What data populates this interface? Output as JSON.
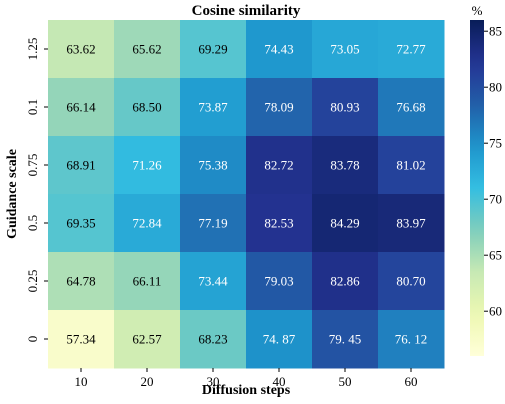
{
  "chart_data": {
    "type": "heatmap",
    "title": "Cosine similarity",
    "xlabel": "Diffusion steps",
    "ylabel": "Guidance scale",
    "x_categories": [
      "10",
      "20",
      "30",
      "40",
      "50",
      "60"
    ],
    "y_categories": [
      "1.25",
      "0.1",
      "0.75",
      "0.5",
      "0.25",
      "0"
    ],
    "values": [
      [
        63.62,
        65.62,
        69.29,
        74.43,
        73.05,
        72.77
      ],
      [
        66.14,
        68.5,
        73.87,
        78.09,
        80.93,
        76.68
      ],
      [
        68.91,
        71.26,
        75.38,
        82.72,
        83.78,
        81.02
      ],
      [
        69.35,
        72.84,
        77.19,
        82.53,
        84.29,
        83.97
      ],
      [
        64.78,
        66.11,
        73.44,
        79.03,
        82.86,
        80.7
      ],
      [
        57.34,
        62.57,
        68.23,
        74.87,
        79.45,
        76.12
      ]
    ],
    "value_labels": [
      [
        "63.62",
        "65.62",
        "69.29",
        "74.43",
        "73.05",
        "72.77"
      ],
      [
        "66.14",
        "68.50",
        "73.87",
        "78.09",
        "80.93",
        "76.68"
      ],
      [
        "68.91",
        "71.26",
        "75.38",
        "82.72",
        "83.78",
        "81.02"
      ],
      [
        "69.35",
        "72.84",
        "77.19",
        "82.53",
        "84.29",
        "83.97"
      ],
      [
        "64.78",
        "66.11",
        "73.44",
        "79.03",
        "82.86",
        "80.70"
      ],
      [
        "57.34",
        "62.57",
        "68.23",
        "74. 87",
        "79. 45",
        "76. 12"
      ]
    ],
    "colorbar": {
      "label": "%",
      "range": [
        56,
        86
      ],
      "ticks": [
        60,
        65,
        70,
        75,
        80,
        85
      ],
      "colormap": "YlGnBu"
    },
    "grid": false
  }
}
